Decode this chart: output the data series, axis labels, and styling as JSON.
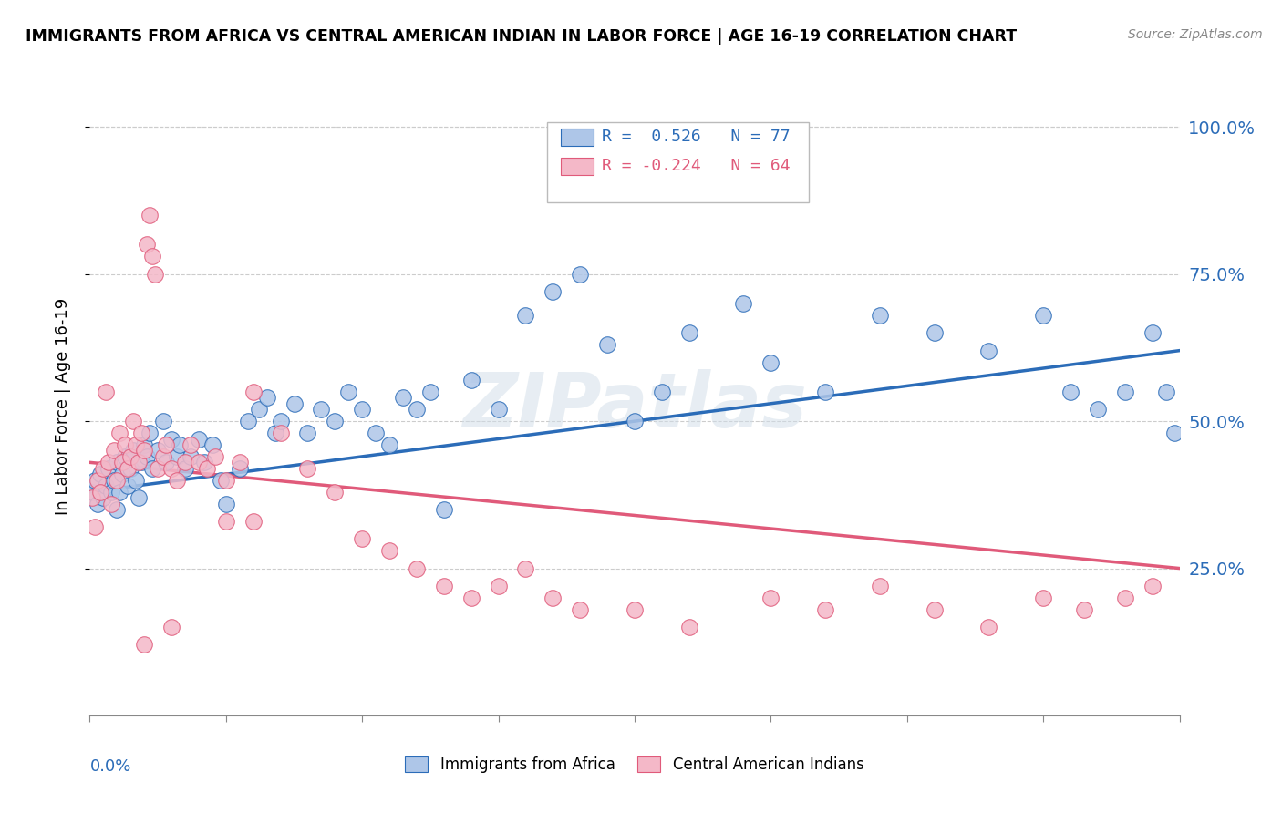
{
  "title": "IMMIGRANTS FROM AFRICA VS CENTRAL AMERICAN INDIAN IN LABOR FORCE | AGE 16-19 CORRELATION CHART",
  "source": "Source: ZipAtlas.com",
  "ylabel": "In Labor Force | Age 16-19",
  "y_tick_labels": [
    "25.0%",
    "50.0%",
    "75.0%",
    "100.0%"
  ],
  "y_tick_values": [
    0.25,
    0.5,
    0.75,
    1.0
  ],
  "xlim": [
    0.0,
    0.4
  ],
  "ylim": [
    0.0,
    1.05
  ],
  "legend_R1": "R =  0.526",
  "legend_N1": "N = 77",
  "legend_R2": "R = -0.224",
  "legend_N2": "N = 64",
  "legend_label1": "Immigrants from Africa",
  "legend_label2": "Central American Indians",
  "color_blue": "#aec6e8",
  "color_pink": "#f4b8c8",
  "line_color_blue": "#2b6cb8",
  "line_color_pink": "#e05a7a",
  "watermark": "ZIPatlas",
  "blue_x": [
    0.001,
    0.002,
    0.003,
    0.004,
    0.005,
    0.006,
    0.007,
    0.008,
    0.009,
    0.01,
    0.01,
    0.011,
    0.012,
    0.013,
    0.014,
    0.015,
    0.016,
    0.017,
    0.018,
    0.019,
    0.02,
    0.021,
    0.022,
    0.023,
    0.025,
    0.027,
    0.028,
    0.03,
    0.032,
    0.033,
    0.035,
    0.037,
    0.04,
    0.042,
    0.045,
    0.048,
    0.05,
    0.055,
    0.058,
    0.062,
    0.065,
    0.068,
    0.07,
    0.075,
    0.08,
    0.085,
    0.09,
    0.095,
    0.1,
    0.105,
    0.11,
    0.115,
    0.12,
    0.125,
    0.13,
    0.14,
    0.15,
    0.16,
    0.17,
    0.18,
    0.19,
    0.2,
    0.21,
    0.22,
    0.24,
    0.25,
    0.27,
    0.29,
    0.31,
    0.33,
    0.35,
    0.36,
    0.37,
    0.38,
    0.39,
    0.395,
    0.398
  ],
  "blue_y": [
    0.38,
    0.4,
    0.36,
    0.41,
    0.37,
    0.39,
    0.42,
    0.38,
    0.4,
    0.43,
    0.35,
    0.38,
    0.41,
    0.44,
    0.39,
    0.42,
    0.45,
    0.4,
    0.37,
    0.43,
    0.46,
    0.44,
    0.48,
    0.42,
    0.45,
    0.5,
    0.43,
    0.47,
    0.44,
    0.46,
    0.42,
    0.44,
    0.47,
    0.43,
    0.46,
    0.4,
    0.36,
    0.42,
    0.5,
    0.52,
    0.54,
    0.48,
    0.5,
    0.53,
    0.48,
    0.52,
    0.5,
    0.55,
    0.52,
    0.48,
    0.46,
    0.54,
    0.52,
    0.55,
    0.35,
    0.57,
    0.52,
    0.68,
    0.72,
    0.75,
    0.63,
    0.5,
    0.55,
    0.65,
    0.7,
    0.6,
    0.55,
    0.68,
    0.65,
    0.62,
    0.68,
    0.55,
    0.52,
    0.55,
    0.65,
    0.55,
    0.48
  ],
  "pink_x": [
    0.001,
    0.002,
    0.003,
    0.004,
    0.005,
    0.006,
    0.007,
    0.008,
    0.009,
    0.01,
    0.011,
    0.012,
    0.013,
    0.014,
    0.015,
    0.016,
    0.017,
    0.018,
    0.019,
    0.02,
    0.021,
    0.022,
    0.023,
    0.024,
    0.025,
    0.027,
    0.028,
    0.03,
    0.032,
    0.035,
    0.037,
    0.04,
    0.043,
    0.046,
    0.05,
    0.055,
    0.06,
    0.07,
    0.08,
    0.09,
    0.1,
    0.11,
    0.12,
    0.13,
    0.14,
    0.15,
    0.16,
    0.17,
    0.18,
    0.2,
    0.22,
    0.25,
    0.27,
    0.29,
    0.31,
    0.33,
    0.35,
    0.365,
    0.38,
    0.39,
    0.05,
    0.06,
    0.02,
    0.03
  ],
  "pink_y": [
    0.37,
    0.32,
    0.4,
    0.38,
    0.42,
    0.55,
    0.43,
    0.36,
    0.45,
    0.4,
    0.48,
    0.43,
    0.46,
    0.42,
    0.44,
    0.5,
    0.46,
    0.43,
    0.48,
    0.45,
    0.8,
    0.85,
    0.78,
    0.75,
    0.42,
    0.44,
    0.46,
    0.42,
    0.4,
    0.43,
    0.46,
    0.43,
    0.42,
    0.44,
    0.4,
    0.43,
    0.55,
    0.48,
    0.42,
    0.38,
    0.3,
    0.28,
    0.25,
    0.22,
    0.2,
    0.22,
    0.25,
    0.2,
    0.18,
    0.18,
    0.15,
    0.2,
    0.18,
    0.22,
    0.18,
    0.15,
    0.2,
    0.18,
    0.2,
    0.22,
    0.33,
    0.33,
    0.12,
    0.15
  ]
}
